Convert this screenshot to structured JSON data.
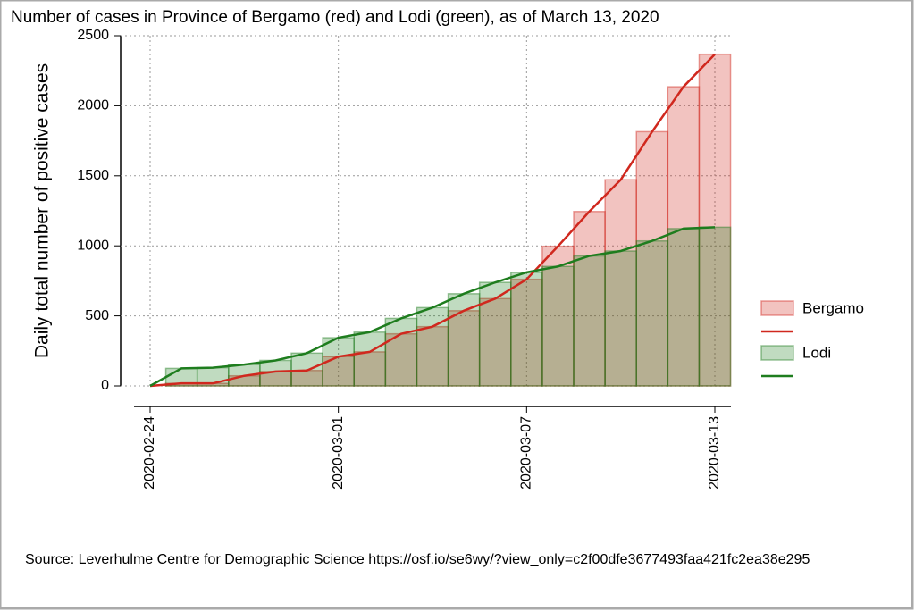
{
  "chart_data": {
    "type": "combo",
    "title": "Number of cases in Province of Bergamo (red) and Lodi (green), as of March 13, 2020",
    "y_label": "Daily total number of positive cases",
    "source": "Source: Leverhulme Centre for Demographic Science https://osf.io/se6wy/?view_only=c2f00dfe3677493faa421fc2ea38e295",
    "x": [
      "2020-02-24",
      "2020-02-25",
      "2020-02-26",
      "2020-02-27",
      "2020-02-28",
      "2020-02-29",
      "2020-03-01",
      "2020-03-02",
      "2020-03-03",
      "2020-03-04",
      "2020-03-05",
      "2020-03-06",
      "2020-03-07",
      "2020-03-08",
      "2020-03-09",
      "2020-03-10",
      "2020-03-11",
      "2020-03-12",
      "2020-03-13"
    ],
    "xticks": [
      "2020-02-24",
      "2020-03-01",
      "2020-03-07",
      "2020-03-13"
    ],
    "series": [
      {
        "name": "Bergamo",
        "color": "#d0281e",
        "values": [
          0,
          18,
          18,
          72,
          103,
          110,
          209,
          243,
          372,
          423,
          537,
          623,
          761,
          997,
          1245,
          1472,
          1815,
          2136,
          2368
        ]
      },
      {
        "name": "Lodi",
        "color": "#1e7d1e",
        "values": [
          0,
          125,
          130,
          152,
          182,
          234,
          344,
          384,
          482,
          559,
          658,
          739,
          811,
          853,
          928,
          963,
          1035,
          1123,
          1133
        ]
      }
    ],
    "ylim": [
      0,
      2500
    ],
    "yticks": [
      0,
      500,
      1000,
      1500,
      2000,
      2500
    ],
    "grid": true
  }
}
